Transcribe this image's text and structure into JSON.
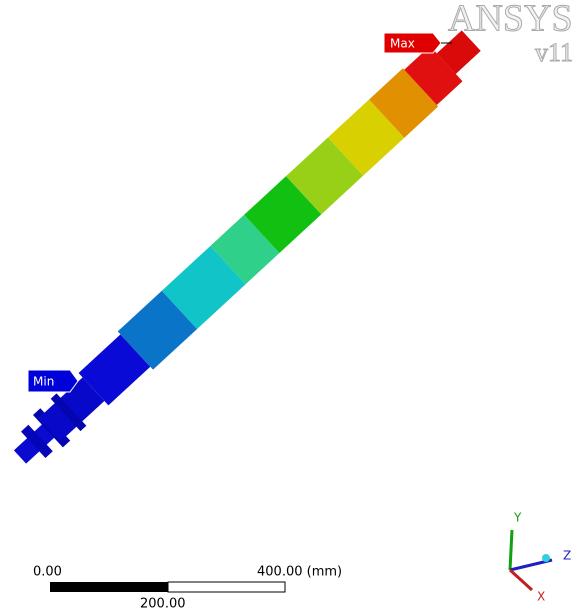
{
  "logo": {
    "name": "ANSYS",
    "version": "v11"
  },
  "labels": {
    "max": "Max",
    "min": "Min"
  },
  "scale_bar": {
    "start": "0.00",
    "end": "400.00 (mm)",
    "middle": "200.00"
  },
  "triad": {
    "y": "Y",
    "z": "Z",
    "x": "X"
  }
}
